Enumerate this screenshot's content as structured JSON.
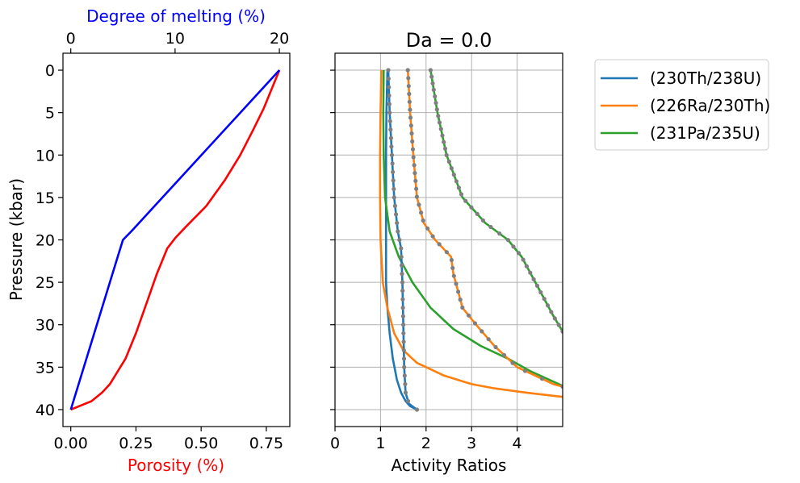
{
  "chart_data": [
    {
      "type": "line",
      "panel": "left",
      "ylabel": "Pressure (kbar)",
      "xlabel": "Porosity (%)",
      "xlabel_color": "#ff0000",
      "x2label": "Degree of melting (%)",
      "x2label_color": "#0000ff",
      "xlim": [
        -0.03,
        0.84
      ],
      "x2lim": [
        -0.75,
        21.0
      ],
      "ylim": [
        42,
        -2
      ],
      "xticks": [
        "0.00",
        "0.25",
        "0.50",
        "0.75"
      ],
      "xtick_values": [
        0,
        0.25,
        0.5,
        0.75
      ],
      "x2ticks": [
        "0",
        "10",
        "20"
      ],
      "x2tick_values": [
        0,
        10,
        20
      ],
      "yticks": [
        "0",
        "5",
        "10",
        "15",
        "20",
        "25",
        "30",
        "35",
        "40"
      ],
      "ytick_values": [
        0,
        5,
        10,
        15,
        20,
        25,
        30,
        35,
        40
      ],
      "series": [
        {
          "color": "#ff0000",
          "axis": "bottom",
          "points": [
            [
              0.0,
              40
            ],
            [
              0.08,
              39
            ],
            [
              0.12,
              38
            ],
            [
              0.15,
              37
            ],
            [
              0.18,
              35.5
            ],
            [
              0.21,
              34
            ],
            [
              0.25,
              31
            ],
            [
              0.29,
              27.5
            ],
            [
              0.33,
              24
            ],
            [
              0.37,
              21
            ],
            [
              0.4,
              19.8
            ],
            [
              0.44,
              18.5
            ],
            [
              0.52,
              16
            ],
            [
              0.59,
              13
            ],
            [
              0.65,
              10
            ],
            [
              0.7,
              7
            ],
            [
              0.74,
              4.5
            ],
            [
              0.8,
              0
            ]
          ]
        },
        {
          "color": "#0000ff",
          "axis": "top",
          "points": [
            [
              0.0,
              40
            ],
            [
              4.5,
              22
            ],
            [
              5.0,
              20
            ],
            [
              5.8,
              19
            ],
            [
              20.0,
              0
            ]
          ]
        }
      ]
    },
    {
      "type": "line",
      "panel": "right",
      "title": "Da = 0.0",
      "xlabel": "Activity Ratios",
      "xlim": [
        0,
        5
      ],
      "ylim": [
        42,
        -2
      ],
      "xticks": [
        "0",
        "1",
        "2",
        "3",
        "4"
      ],
      "xtick_values": [
        0,
        1,
        2,
        3,
        4
      ],
      "grid": true,
      "legend_position": "outside-right",
      "series": [
        {
          "name": "(230Th/238U)",
          "color": "#1f77b4",
          "points": [
            [
              1.15,
              0
            ],
            [
              1.13,
              5
            ],
            [
              1.12,
              10
            ],
            [
              1.12,
              15
            ],
            [
              1.12,
              20
            ],
            [
              1.12,
              25
            ],
            [
              1.15,
              28
            ],
            [
              1.2,
              31
            ],
            [
              1.27,
              34
            ],
            [
              1.36,
              36.5
            ],
            [
              1.45,
              38
            ],
            [
              1.55,
              39
            ],
            [
              1.65,
              39.6
            ],
            [
              1.8,
              40
            ]
          ]
        },
        {
          "name": "(226Ra/230Th)",
          "color": "#ff7f0e",
          "points": [
            [
              1.02,
              0
            ],
            [
              1.0,
              5
            ],
            [
              0.99,
              10
            ],
            [
              0.99,
              15
            ],
            [
              1.0,
              20
            ],
            [
              1.05,
              25
            ],
            [
              1.15,
              28
            ],
            [
              1.3,
              31
            ],
            [
              1.5,
              33
            ],
            [
              1.8,
              34.5
            ],
            [
              2.4,
              36
            ],
            [
              3.0,
              37
            ],
            [
              3.5,
              37.5
            ],
            [
              4.2,
              38
            ],
            [
              5.0,
              38.5
            ]
          ]
        },
        {
          "name": "(231Pa/235U)",
          "color": "#2ca02c",
          "points": [
            [
              1.07,
              0
            ],
            [
              1.06,
              5
            ],
            [
              1.07,
              10
            ],
            [
              1.1,
              15
            ],
            [
              1.2,
              19
            ],
            [
              1.4,
              22
            ],
            [
              1.7,
              25
            ],
            [
              2.1,
              28
            ],
            [
              2.6,
              30.5
            ],
            [
              3.2,
              32.5
            ],
            [
              3.8,
              34
            ],
            [
              4.3,
              35.5
            ],
            [
              5.0,
              37.2
            ]
          ]
        },
        {
          "name": "",
          "color": "#1f77b4",
          "markers": true,
          "points": [
            [
              1.17,
              0
            ],
            [
              1.2,
              5
            ],
            [
              1.25,
              10
            ],
            [
              1.3,
              15
            ],
            [
              1.38,
              19
            ],
            [
              1.45,
              21
            ],
            [
              1.48,
              25
            ],
            [
              1.5,
              30
            ],
            [
              1.52,
              35
            ],
            [
              1.55,
              38
            ],
            [
              1.62,
              39.3
            ],
            [
              1.8,
              40
            ]
          ]
        },
        {
          "name": "",
          "color": "#ff7f0e",
          "markers": true,
          "points": [
            [
              1.6,
              0
            ],
            [
              1.65,
              5
            ],
            [
              1.72,
              10
            ],
            [
              1.8,
              15
            ],
            [
              1.95,
              18
            ],
            [
              2.2,
              20
            ],
            [
              2.55,
              22
            ],
            [
              2.6,
              24
            ],
            [
              2.7,
              26
            ],
            [
              2.8,
              28
            ],
            [
              3.1,
              30
            ],
            [
              3.5,
              32.5
            ],
            [
              4.0,
              35
            ],
            [
              4.8,
              37
            ],
            [
              5.0,
              37.3
            ]
          ]
        },
        {
          "name": "",
          "color": "#2ca02c",
          "markers": true,
          "points": [
            [
              2.1,
              0
            ],
            [
              2.25,
              5
            ],
            [
              2.45,
              10
            ],
            [
              2.8,
              15
            ],
            [
              3.3,
              18
            ],
            [
              3.8,
              20
            ],
            [
              4.1,
              22
            ],
            [
              4.5,
              26
            ],
            [
              4.8,
              29
            ],
            [
              5.0,
              30.8
            ]
          ]
        }
      ]
    }
  ]
}
